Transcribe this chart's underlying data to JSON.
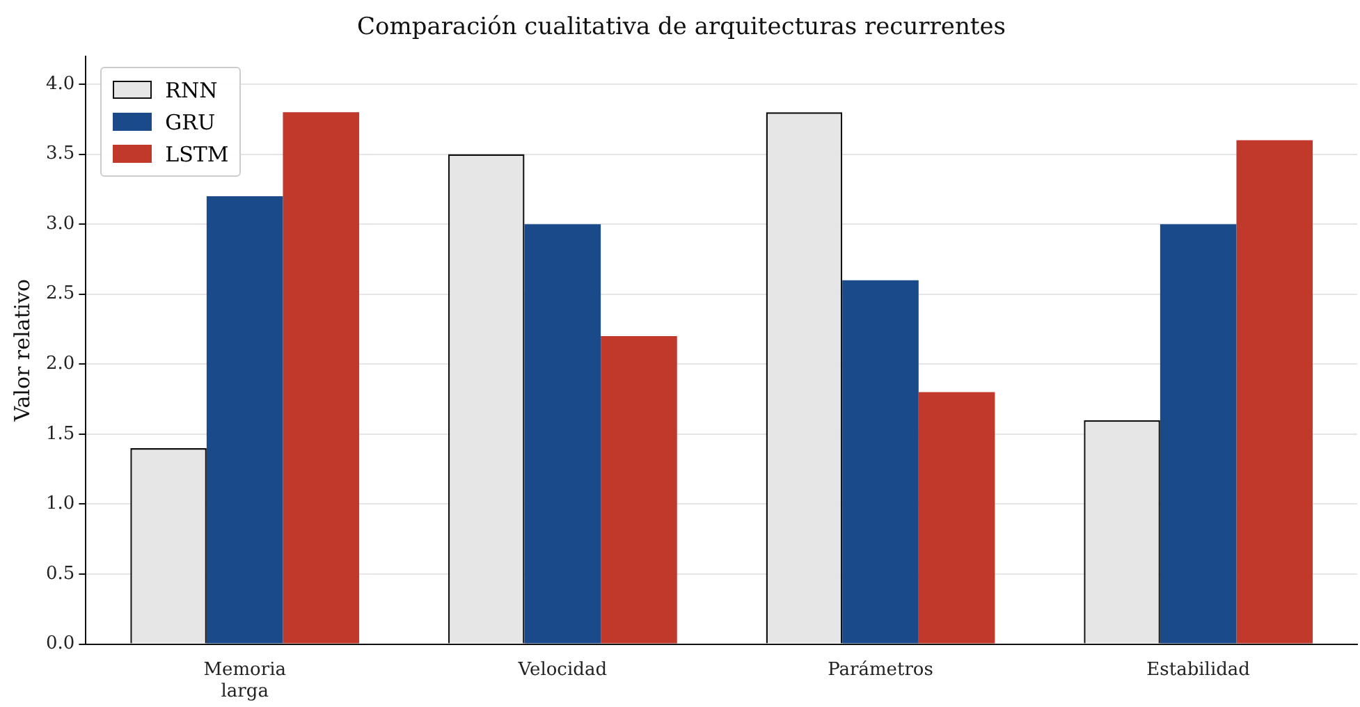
{
  "chart_data": {
    "type": "bar",
    "title": "Comparación cualitativa de arquitecturas recurrentes",
    "ylabel": "Valor relativo",
    "categories": [
      "Memoria larga",
      "Velocidad",
      "Parámetros",
      "Estabilidad"
    ],
    "series": [
      {
        "name": "RNN",
        "color": "#e6e6e6",
        "values": [
          1.4,
          3.5,
          3.8,
          1.6
        ]
      },
      {
        "name": "GRU",
        "color": "#1a4a8a",
        "values": [
          3.2,
          3.0,
          2.6,
          3.0
        ]
      },
      {
        "name": "LSTM",
        "color": "#c0392b",
        "values": [
          3.8,
          2.2,
          1.8,
          3.6
        ]
      }
    ],
    "ylim": [
      0,
      4.2
    ],
    "yticks": [
      {
        "value": 0,
        "label": "0.0"
      },
      {
        "value": 0.5,
        "label": "0.5"
      },
      {
        "value": 1,
        "label": "1.0"
      },
      {
        "value": 1.5,
        "label": "1.5"
      },
      {
        "value": 2,
        "label": "2.0"
      },
      {
        "value": 2.5,
        "label": "2.5"
      },
      {
        "value": 3,
        "label": "3.0"
      },
      {
        "value": 3.5,
        "label": "3.5"
      },
      {
        "value": 4,
        "label": "4.0"
      }
    ],
    "grid": "y",
    "legend": "top left"
  }
}
